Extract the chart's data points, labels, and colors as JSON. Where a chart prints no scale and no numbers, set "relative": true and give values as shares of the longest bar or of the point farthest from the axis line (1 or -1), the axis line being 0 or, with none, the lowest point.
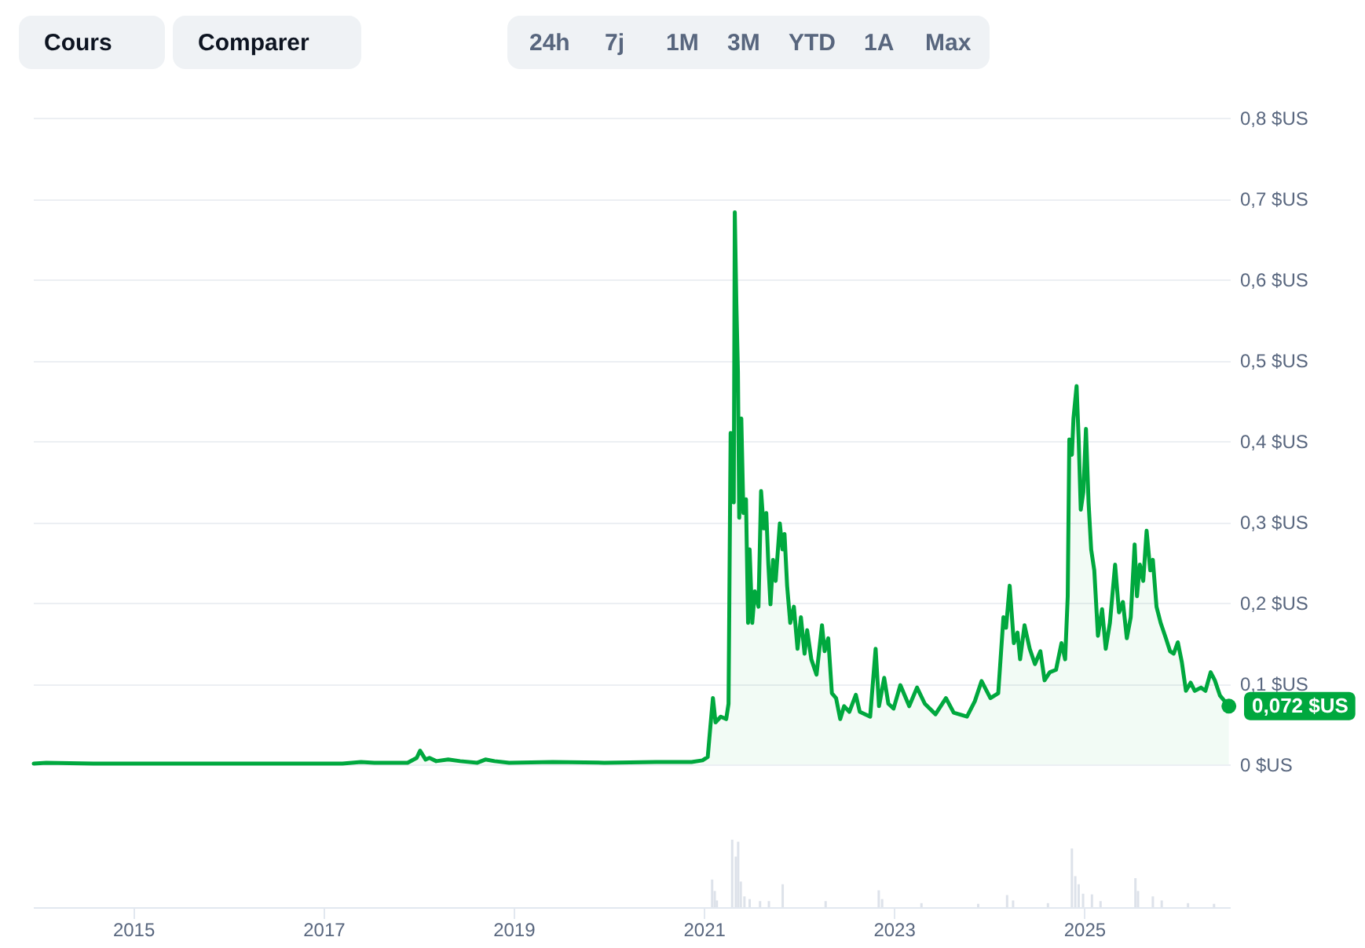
{
  "chart_data": [
    {
      "type": "area",
      "grid": "y",
      "tick_labels": "y",
      "xlim": [
        "2013-12-12",
        "2026-07-15"
      ],
      "ylim": [
        0,
        0.8
      ],
      "yticks": [
        {
          "value": 0,
          "label": "0 $US"
        },
        {
          "value": 0.1,
          "label": "0,1 $US"
        },
        {
          "value": 0.2,
          "label": "0,2 $US"
        },
        {
          "value": 0.3,
          "label": "0,3 $US"
        },
        {
          "value": 0.4,
          "label": "0,4 $US"
        },
        {
          "value": 0.5,
          "label": "0,5 $US"
        },
        {
          "value": 0.6,
          "label": "0,6 $US"
        },
        {
          "value": 0.7,
          "label": "0,7 $US"
        },
        {
          "value": 0.8,
          "label": "0,8 $US"
        }
      ],
      "annotations": [
        "Cours",
        "Comparer",
        "24h",
        "7j",
        "1M",
        "3M",
        "YTD",
        "1A",
        "Max",
        {
          "text": "0,072 $US",
          "x": "2026-07-11",
          "y": 0.072
        }
      ],
      "x": [
        "2013-12-15",
        "2014-02-01",
        "2014-08-01",
        "2015-06-01",
        "2016-06-01",
        "2017-03-15",
        "2017-05-25",
        "2017-07-15",
        "2017-11-20",
        "2017-12-25",
        "2018-01-07",
        "2018-01-28",
        "2018-02-12",
        "2018-03-10",
        "2018-04-25",
        "2018-06-10",
        "2018-08-15",
        "2018-09-15",
        "2018-10-20",
        "2018-12-15",
        "2019-06-01",
        "2019-12-15",
        "2020-07-01",
        "2020-11-15",
        "2020-12-27",
        "2021-01-16",
        "2021-01-26",
        "2021-02-05",
        "2021-02-15",
        "2021-03-07",
        "2021-03-28",
        "2021-04-06",
        "2021-04-14",
        "2021-04-20",
        "2021-04-22",
        "2021-04-26",
        "2021-04-30",
        "2021-05-06",
        "2021-05-12",
        "2021-05-17",
        "2021-05-25",
        "2021-06-02",
        "2021-06-12",
        "2021-06-20",
        "2021-06-26",
        "2021-07-06",
        "2021-07-16",
        "2021-07-30",
        "2021-08-09",
        "2021-08-19",
        "2021-08-29",
        "2021-09-06",
        "2021-09-14",
        "2021-09-24",
        "2021-10-04",
        "2021-10-20",
        "2021-10-30",
        "2021-11-07",
        "2021-11-17",
        "2021-11-29",
        "2021-12-13",
        "2021-12-27",
        "2022-01-09",
        "2022-01-23",
        "2022-02-02",
        "2022-02-18",
        "2022-03-10",
        "2022-03-31",
        "2022-04-10",
        "2022-04-24",
        "2022-05-08",
        "2022-05-24",
        "2022-06-09",
        "2022-06-24",
        "2022-07-14",
        "2022-08-08",
        "2022-08-23",
        "2022-10-02",
        "2022-10-23",
        "2022-11-05",
        "2022-11-25",
        "2022-12-11",
        "2022-12-31",
        "2023-01-26",
        "2023-03-01",
        "2023-03-31",
        "2023-04-30",
        "2023-06-10",
        "2023-07-20",
        "2023-08-19",
        "2023-10-09",
        "2023-11-08",
        "2023-12-04",
        "2024-01-07",
        "2024-02-06",
        "2024-02-26",
        "2024-03-07",
        "2024-03-21",
        "2024-04-06",
        "2024-04-20",
        "2024-04-30",
        "2024-05-17",
        "2024-06-06",
        "2024-06-26",
        "2024-07-17",
        "2024-08-02",
        "2024-08-22",
        "2024-09-15",
        "2024-10-06",
        "2024-10-20",
        "2024-10-30",
        "2024-11-05",
        "2024-11-15",
        "2024-11-21",
        "2024-12-03",
        "2024-12-11",
        "2024-12-19",
        "2024-12-29",
        "2025-01-08",
        "2025-01-18",
        "2025-01-28",
        "2025-02-09",
        "2025-02-23",
        "2025-03-11",
        "2025-03-25",
        "2025-04-10",
        "2025-04-30",
        "2025-05-15",
        "2025-05-30",
        "2025-06-14",
        "2025-06-29",
        "2025-07-14",
        "2025-07-23",
        "2025-08-03",
        "2025-08-16",
        "2025-08-29",
        "2025-09-12",
        "2025-09-22",
        "2025-10-06",
        "2025-10-22",
        "2025-11-11",
        "2025-11-27",
        "2025-12-11",
        "2025-12-27",
        "2026-01-11",
        "2026-01-27",
        "2026-02-14",
        "2026-03-02",
        "2026-03-26",
        "2026-04-12",
        "2026-05-02",
        "2026-05-18",
        "2026-06-07",
        "2026-07-11"
      ],
      "series": [
        {
          "color": "#00a83e",
          "values": [
            0.001,
            0.002,
            0.001,
            0.001,
            0.001,
            0.001,
            0.003,
            0.002,
            0.002,
            0.008,
            0.017,
            0.006,
            0.008,
            0.004,
            0.006,
            0.004,
            0.002,
            0.006,
            0.004,
            0.002,
            0.003,
            0.002,
            0.003,
            0.003,
            0.005,
            0.009,
            0.046,
            0.082,
            0.052,
            0.059,
            0.056,
            0.075,
            0.41,
            0.376,
            0.408,
            0.324,
            0.683,
            0.57,
            0.486,
            0.305,
            0.428,
            0.311,
            0.328,
            0.175,
            0.266,
            0.175,
            0.214,
            0.195,
            0.338,
            0.292,
            0.311,
            0.247,
            0.198,
            0.253,
            0.227,
            0.298,
            0.266,
            0.285,
            0.221,
            0.175,
            0.195,
            0.143,
            0.182,
            0.137,
            0.166,
            0.13,
            0.111,
            0.172,
            0.14,
            0.156,
            0.088,
            0.082,
            0.056,
            0.072,
            0.065,
            0.086,
            0.065,
            0.059,
            0.143,
            0.072,
            0.107,
            0.075,
            0.069,
            0.098,
            0.072,
            0.095,
            0.075,
            0.062,
            0.082,
            0.064,
            0.059,
            0.078,
            0.103,
            0.082,
            0.088,
            0.182,
            0.169,
            0.221,
            0.15,
            0.163,
            0.13,
            0.172,
            0.143,
            0.124,
            0.14,
            0.104,
            0.114,
            0.117,
            0.15,
            0.13,
            0.208,
            0.402,
            0.383,
            0.428,
            0.468,
            0.402,
            0.315,
            0.337,
            0.415,
            0.324,
            0.266,
            0.24,
            0.159,
            0.192,
            0.143,
            0.175,
            0.247,
            0.188,
            0.201,
            0.156,
            0.182,
            0.272,
            0.208,
            0.247,
            0.227,
            0.289,
            0.24,
            0.253,
            0.195,
            0.175,
            0.156,
            0.14,
            0.137,
            0.151,
            0.127,
            0.091,
            0.101,
            0.091,
            0.095,
            0.091,
            0.114,
            0.104,
            0.085,
            0.072
          ]
        }
      ]
    },
    {
      "type": "bar",
      "relative": true,
      "tick_labels": "x",
      "color": "#dde2ea",
      "xlim": [
        "2013-12-12",
        "2026-07-15"
      ],
      "xticks": [
        "2015",
        "2017",
        "2019",
        "2021",
        "2023",
        "2025"
      ],
      "x": [
        "2021-02-02",
        "2021-02-12",
        "2021-02-20",
        "2021-04-20",
        "2021-05-04",
        "2021-05-13",
        "2021-05-23",
        "2021-06-06",
        "2021-06-26",
        "2021-08-05",
        "2021-09-08",
        "2021-10-31",
        "2022-04-14",
        "2022-11-04",
        "2022-11-17",
        "2023-04-17",
        "2023-11-21",
        "2024-03-11",
        "2024-04-03",
        "2024-08-15",
        "2024-11-15",
        "2024-11-28",
        "2024-12-11",
        "2024-12-28",
        "2025-01-31",
        "2025-03-05",
        "2025-07-17",
        "2025-07-27",
        "2025-09-22",
        "2025-10-26",
        "2026-02-04",
        "2026-05-15"
      ],
      "values": [
        0.41,
        0.24,
        0.1,
        1,
        0.75,
        0.97,
        0.38,
        0.16,
        0.12,
        0.09,
        0.09,
        0.34,
        0.09,
        0.25,
        0.12,
        0.06,
        0.05,
        0.18,
        0.1,
        0.06,
        0.87,
        0.46,
        0.34,
        0.2,
        0.19,
        0.09,
        0.43,
        0.24,
        0.16,
        0.1,
        0.06,
        0.05
      ]
    }
  ]
}
